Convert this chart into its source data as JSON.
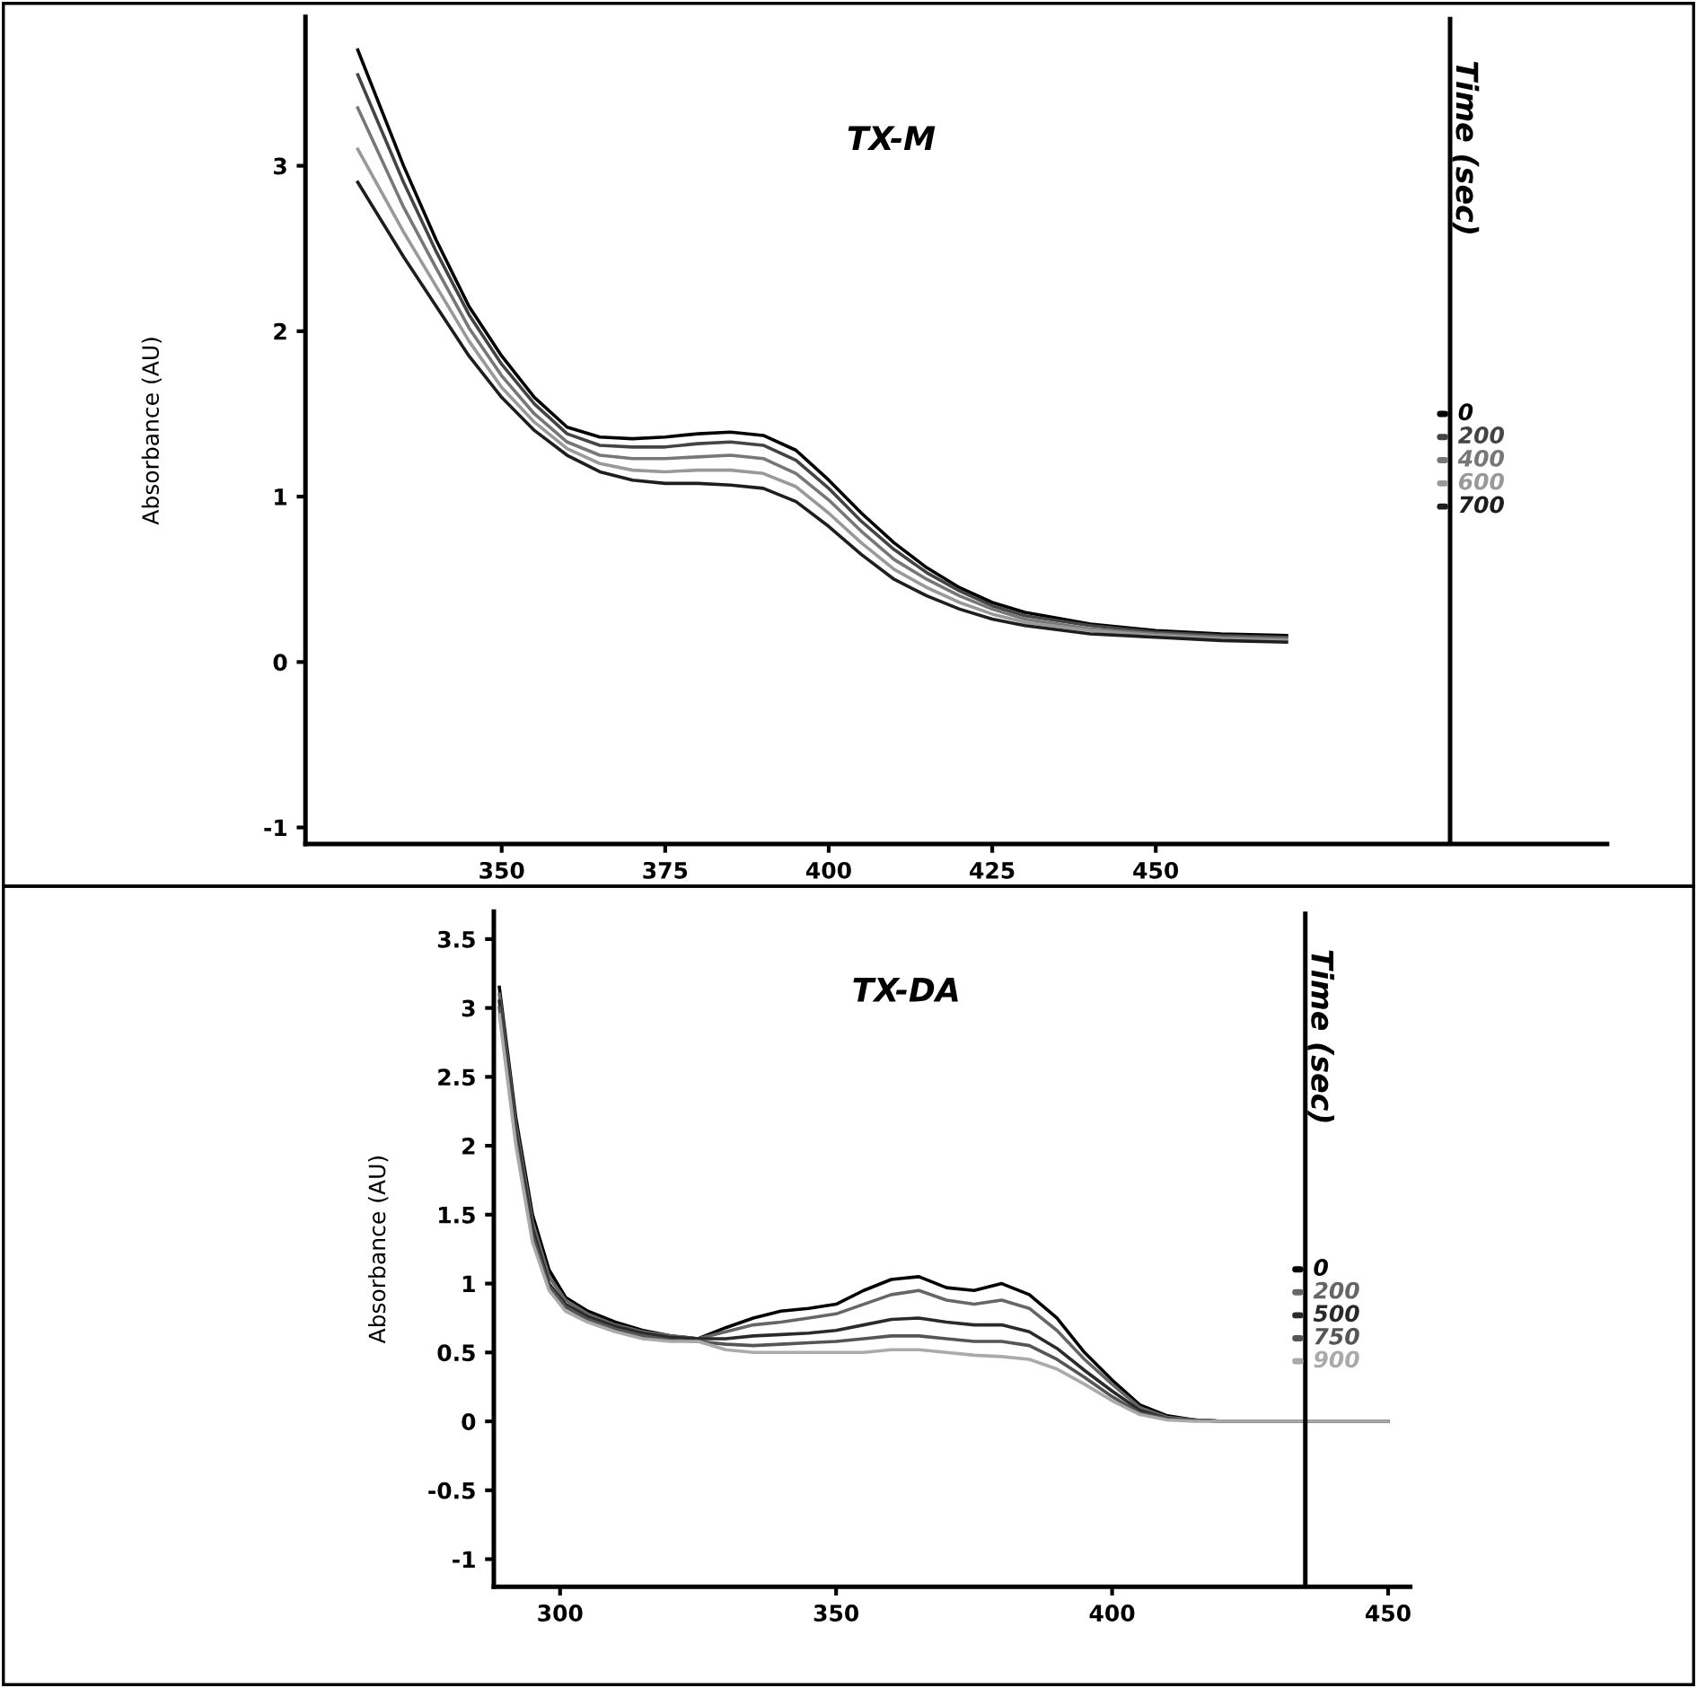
{
  "chart_data": [
    {
      "type": "line",
      "title": "TX-M",
      "ylabel": "Absorbance (AU)",
      "x": [
        328,
        335,
        340,
        345,
        350,
        355,
        360,
        365,
        370,
        375,
        380,
        385,
        390,
        395,
        400,
        405,
        410,
        415,
        420,
        425,
        430,
        440,
        450,
        460,
        470
      ],
      "series": [
        {
          "name": "0",
          "color": "#000000",
          "values": [
            3.7,
            3.0,
            2.55,
            2.15,
            1.85,
            1.6,
            1.42,
            1.36,
            1.35,
            1.36,
            1.38,
            1.39,
            1.37,
            1.28,
            1.1,
            0.9,
            0.72,
            0.57,
            0.45,
            0.36,
            0.3,
            0.23,
            0.19,
            0.17,
            0.16
          ]
        },
        {
          "name": "200",
          "color": "#444444",
          "values": [
            3.55,
            2.9,
            2.48,
            2.1,
            1.8,
            1.56,
            1.38,
            1.31,
            1.3,
            1.3,
            1.32,
            1.33,
            1.31,
            1.22,
            1.05,
            0.85,
            0.68,
            0.54,
            0.43,
            0.34,
            0.28,
            0.22,
            0.18,
            0.16,
            0.15
          ]
        },
        {
          "name": "400",
          "color": "#777777",
          "values": [
            3.35,
            2.75,
            2.38,
            2.02,
            1.73,
            1.5,
            1.33,
            1.25,
            1.23,
            1.23,
            1.24,
            1.25,
            1.23,
            1.14,
            0.98,
            0.79,
            0.62,
            0.5,
            0.4,
            0.32,
            0.26,
            0.2,
            0.17,
            0.15,
            0.14
          ]
        },
        {
          "name": "600",
          "color": "#999999",
          "values": [
            3.1,
            2.6,
            2.27,
            1.94,
            1.66,
            1.45,
            1.29,
            1.2,
            1.16,
            1.15,
            1.16,
            1.16,
            1.14,
            1.06,
            0.9,
            0.72,
            0.56,
            0.45,
            0.36,
            0.29,
            0.24,
            0.19,
            0.16,
            0.14,
            0.13
          ]
        },
        {
          "name": "700",
          "color": "#1e1e1e",
          "values": [
            2.9,
            2.45,
            2.15,
            1.85,
            1.6,
            1.4,
            1.25,
            1.15,
            1.1,
            1.08,
            1.08,
            1.07,
            1.05,
            0.97,
            0.82,
            0.65,
            0.5,
            0.4,
            0.32,
            0.26,
            0.22,
            0.17,
            0.15,
            0.13,
            0.12
          ]
        }
      ],
      "xlim": [
        320,
        519
      ],
      "ylim": [
        -1.1,
        3.9
      ],
      "xticks": [
        350,
        375,
        400,
        425,
        450
      ],
      "yticks": [
        -1,
        0,
        1,
        2,
        3
      ],
      "ref_lines": [
        {
          "axis": "x",
          "value": 495,
          "label": "Time (sec)"
        }
      ],
      "line_style": "solid",
      "legend": "right"
    },
    {
      "type": "line",
      "title": "TX-DA",
      "ylabel": "Absorbance (AU)",
      "x": [
        289,
        292,
        295,
        298,
        301,
        305,
        310,
        315,
        320,
        325,
        330,
        335,
        340,
        345,
        350,
        355,
        360,
        365,
        370,
        375,
        380,
        385,
        390,
        395,
        400,
        405,
        410,
        415,
        420,
        430,
        440,
        450
      ],
      "series": [
        {
          "name": "0",
          "color": "#000000",
          "values": [
            3.15,
            2.2,
            1.5,
            1.1,
            0.9,
            0.8,
            0.72,
            0.66,
            0.62,
            0.6,
            0.68,
            0.75,
            0.8,
            0.82,
            0.85,
            0.95,
            1.03,
            1.05,
            0.97,
            0.95,
            1.0,
            0.92,
            0.75,
            0.5,
            0.3,
            0.12,
            0.04,
            0.01,
            0,
            0,
            0,
            0
          ]
        },
        {
          "name": "200",
          "color": "#666666",
          "values": [
            3.1,
            2.15,
            1.45,
            1.05,
            0.88,
            0.78,
            0.7,
            0.65,
            0.62,
            0.6,
            0.65,
            0.7,
            0.72,
            0.75,
            0.78,
            0.85,
            0.92,
            0.95,
            0.88,
            0.85,
            0.88,
            0.82,
            0.66,
            0.45,
            0.27,
            0.1,
            0.03,
            0.01,
            0,
            0,
            0,
            0
          ]
        },
        {
          "name": "500",
          "color": "#2a2a2a",
          "values": [
            3.05,
            2.1,
            1.4,
            1.0,
            0.85,
            0.76,
            0.69,
            0.64,
            0.61,
            0.6,
            0.6,
            0.62,
            0.63,
            0.64,
            0.66,
            0.7,
            0.74,
            0.75,
            0.72,
            0.7,
            0.7,
            0.65,
            0.53,
            0.37,
            0.22,
            0.08,
            0.02,
            0.01,
            0,
            0,
            0,
            0
          ]
        },
        {
          "name": "750",
          "color": "#555555",
          "values": [
            3.0,
            2.05,
            1.35,
            0.98,
            0.83,
            0.74,
            0.67,
            0.62,
            0.59,
            0.58,
            0.56,
            0.55,
            0.56,
            0.57,
            0.58,
            0.6,
            0.62,
            0.62,
            0.6,
            0.58,
            0.58,
            0.55,
            0.45,
            0.32,
            0.18,
            0.06,
            0.02,
            0.01,
            0,
            0,
            0,
            0
          ]
        },
        {
          "name": "900",
          "color": "#aaaaaa",
          "values": [
            2.95,
            2.0,
            1.3,
            0.95,
            0.8,
            0.72,
            0.65,
            0.6,
            0.58,
            0.58,
            0.52,
            0.5,
            0.5,
            0.5,
            0.5,
            0.5,
            0.52,
            0.52,
            0.5,
            0.48,
            0.47,
            0.45,
            0.38,
            0.27,
            0.15,
            0.05,
            0.01,
            0,
            0,
            0,
            0,
            0
          ]
        }
      ],
      "xlim": [
        288,
        454
      ],
      "ylim": [
        -1.2,
        3.7
      ],
      "xticks": [
        300,
        350,
        400,
        450
      ],
      "yticks": [
        -1,
        -0.5,
        0,
        0.5,
        1,
        1.5,
        2,
        2.5,
        3,
        3.5
      ],
      "ref_lines": [
        {
          "axis": "x",
          "value": 435,
          "label": "Time (sec)"
        }
      ],
      "line_style": "solid",
      "legend": "right"
    }
  ]
}
